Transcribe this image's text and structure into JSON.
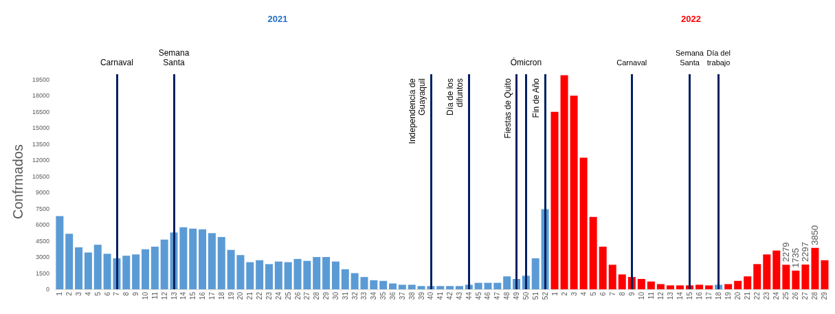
{
  "chart_data": [
    {
      "type": "bar",
      "title": "2021",
      "ylabel": "Confrmados",
      "categories": [
        "1",
        "2",
        "3",
        "4",
        "5",
        "6",
        "7",
        "8",
        "9",
        "10",
        "11",
        "12",
        "13",
        "14",
        "15",
        "16",
        "17",
        "18",
        "19",
        "20",
        "21",
        "22",
        "23",
        "24",
        "25",
        "26",
        "27",
        "28",
        "29",
        "30",
        "31",
        "32",
        "33",
        "34",
        "35",
        "36",
        "37",
        "38",
        "39",
        "40",
        "41",
        "42",
        "43",
        "44",
        "45",
        "46",
        "47",
        "48",
        "49",
        "50",
        "51",
        "52"
      ],
      "values": [
        6800,
        5160,
        3900,
        3420,
        4140,
        3300,
        2880,
        3120,
        3240,
        3720,
        3960,
        4620,
        5280,
        5760,
        5640,
        5580,
        5220,
        4860,
        3660,
        3180,
        2520,
        2700,
        2340,
        2580,
        2520,
        2820,
        2640,
        3000,
        3000,
        2580,
        1860,
        1500,
        1140,
        840,
        780,
        540,
        420,
        420,
        300,
        300,
        300,
        300,
        300,
        420,
        600,
        600,
        600,
        1200,
        960,
        1260,
        2880,
        7440
      ],
      "color": "#5b9bd5",
      "ylim": [
        0,
        20000
      ],
      "yticks": [
        0,
        1500,
        3000,
        4500,
        6000,
        7500,
        9000,
        10500,
        12000,
        13500,
        15000,
        16500,
        18000,
        19500
      ],
      "ref_lines": [
        {
          "axis": "x",
          "value": "7",
          "label": "Carnaval",
          "color": "#002060"
        },
        {
          "axis": "x",
          "value": "13",
          "label": "Semana\nSanta",
          "color": "#002060"
        },
        {
          "axis": "x",
          "value": "40",
          "label": "Independencia de\nGuayaquil",
          "color": "#002060"
        },
        {
          "axis": "x",
          "value": "44",
          "label": "Día de los\ndifuntos",
          "color": "#002060"
        },
        {
          "axis": "x",
          "value": "49",
          "label": "Fiestas de Quito",
          "color": "#002060"
        },
        {
          "axis": "x",
          "value": "50",
          "label": "Ómicron",
          "color": "#002060"
        },
        {
          "axis": "x",
          "value": "52",
          "label": "Fin de Año",
          "color": "#002060"
        }
      ],
      "grid": false
    },
    {
      "type": "bar",
      "title": "2022",
      "categories": [
        "1",
        "2",
        "3",
        "4",
        "5",
        "6",
        "7",
        "8",
        "9",
        "10",
        "11",
        "12",
        "13",
        "14",
        "15",
        "16",
        "17",
        "18",
        "19",
        "20",
        "21",
        "22",
        "23",
        "24",
        "25",
        "26",
        "27",
        "28",
        "29"
      ],
      "values": [
        16500,
        19900,
        18000,
        12240,
        6720,
        3960,
        2280,
        1380,
        1140,
        960,
        720,
        480,
        360,
        360,
        360,
        420,
        360,
        420,
        480,
        780,
        1200,
        2340,
        3240,
        3600,
        2279,
        1735,
        2297,
        3850,
        2700
      ],
      "value_labels": [
        null,
        null,
        null,
        null,
        null,
        null,
        null,
        null,
        null,
        null,
        null,
        null,
        null,
        null,
        null,
        null,
        null,
        null,
        null,
        null,
        null,
        null,
        null,
        null,
        "2279",
        "1735",
        "2297",
        "3850",
        null
      ],
      "colors": [
        "#ff0000",
        "#ff0000",
        "#ff0000",
        "#ff0000",
        "#ff0000",
        "#ff0000",
        "#ff0000",
        "#ff0000",
        "#ff0000",
        "#ff0000",
        "#ff0000",
        "#ff0000",
        "#ff0000",
        "#ff0000",
        "#ff0000",
        "#ff0000",
        "#ff0000",
        "#5b9bd5",
        "#ff0000",
        "#ff0000",
        "#ff0000",
        "#ff0000",
        "#ff0000",
        "#ff0000",
        "#ff0000",
        "#ff0000",
        "#ff0000",
        "#ff0000",
        "#ff0000"
      ],
      "ylim": [
        0,
        20000
      ],
      "tick_labels": "x",
      "ref_lines": [
        {
          "axis": "x",
          "value": "9",
          "label": "Carnaval",
          "color": "#002060"
        },
        {
          "axis": "x",
          "value": "15",
          "label": "Semana\nSanta",
          "color": "#002060"
        },
        {
          "axis": "x",
          "value": "18",
          "label": "Día del\ntrabajo",
          "color": "#002060"
        }
      ],
      "grid": false
    }
  ]
}
